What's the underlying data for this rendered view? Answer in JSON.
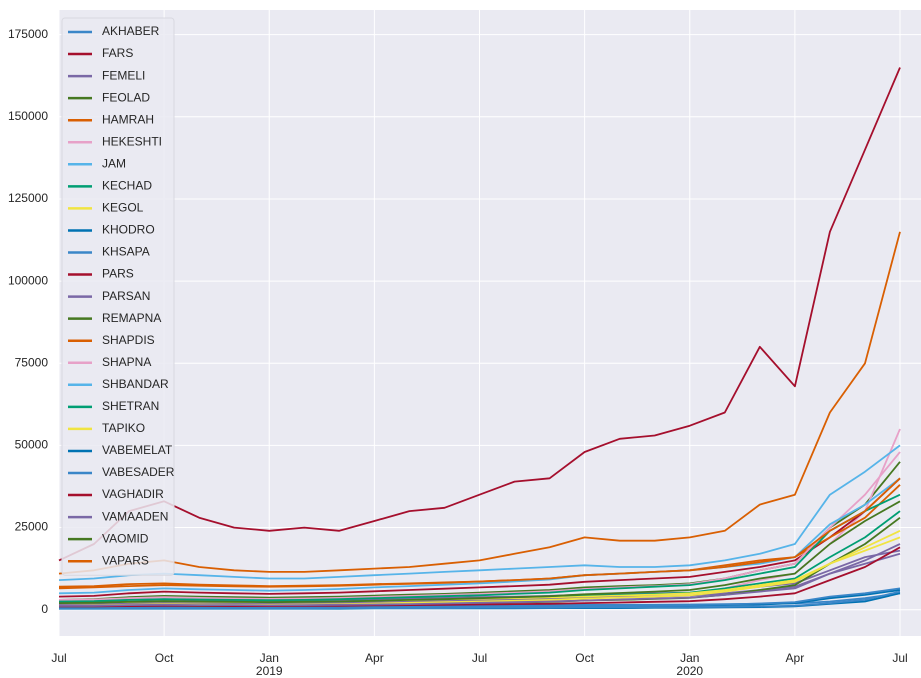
{
  "chart_data": {
    "type": "line",
    "x": [
      "2018-07",
      "2018-08",
      "2018-09",
      "2018-10",
      "2018-11",
      "2018-12",
      "2019-01",
      "2019-02",
      "2019-03",
      "2019-04",
      "2019-05",
      "2019-06",
      "2019-07",
      "2019-08",
      "2019-09",
      "2019-10",
      "2019-11",
      "2019-12",
      "2020-01",
      "2020-02",
      "2020-03",
      "2020-04",
      "2020-05",
      "2020-06",
      "2020-07"
    ],
    "xlim": [
      "2018-07",
      "2020-07"
    ],
    "xticks": [
      {
        "value": "2018-07",
        "label": "Jul"
      },
      {
        "value": "2018-10",
        "label": "Oct"
      },
      {
        "value": "2019-01",
        "label": "Jan",
        "year": "2019"
      },
      {
        "value": "2019-04",
        "label": "Apr"
      },
      {
        "value": "2019-07",
        "label": "Jul"
      },
      {
        "value": "2019-10",
        "label": "Oct"
      },
      {
        "value": "2020-01",
        "label": "Jan",
        "year": "2020"
      },
      {
        "value": "2020-04",
        "label": "Apr"
      },
      {
        "value": "2020-07",
        "label": "Jul"
      }
    ],
    "ylim": [
      -8000,
      182500
    ],
    "yticks": [
      0,
      25000,
      50000,
      75000,
      100000,
      125000,
      150000,
      175000
    ],
    "grid": true,
    "legend": "upper-left",
    "series": [
      {
        "name": "AKHABER",
        "color": "#3a86c8",
        "values": [
          1000,
          1000,
          1100,
          1100,
          1000,
          1000,
          1000,
          1100,
          1100,
          1200,
          1200,
          1300,
          1300,
          1400,
          1400,
          1500,
          1500,
          1500,
          1600,
          1700,
          1800,
          1900,
          2500,
          3500,
          5000
        ]
      },
      {
        "name": "FARS",
        "color": "#a50f2d",
        "values": [
          15000,
          20000,
          30000,
          33000,
          28000,
          25000,
          24000,
          25000,
          24000,
          27000,
          30000,
          31000,
          35000,
          39000,
          40000,
          48000,
          52000,
          53000,
          56000,
          60000,
          80000,
          68000,
          115000,
          140000,
          165000
        ]
      },
      {
        "name": "FEMELI",
        "color": "#7a68a6",
        "values": [
          2500,
          2600,
          3000,
          3200,
          3000,
          2900,
          2800,
          2900,
          3000,
          3200,
          3400,
          3600,
          3800,
          4000,
          4200,
          4600,
          4800,
          5000,
          5200,
          6000,
          7000,
          8000,
          12000,
          16000,
          18000
        ]
      },
      {
        "name": "FEOLAD",
        "color": "#467821",
        "values": [
          3000,
          3200,
          3800,
          4200,
          4000,
          3800,
          3700,
          3800,
          4000,
          4300,
          4600,
          4800,
          5200,
          5600,
          6000,
          6800,
          7200,
          7500,
          8000,
          9500,
          12000,
          14000,
          25000,
          32000,
          45000
        ]
      },
      {
        "name": "HAMRAH",
        "color": "#d95f02",
        "values": [
          11000,
          12000,
          14000,
          15000,
          13000,
          12000,
          11500,
          11500,
          12000,
          12500,
          13000,
          14000,
          15000,
          17000,
          19000,
          22000,
          21000,
          21000,
          22000,
          24000,
          32000,
          35000,
          60000,
          75000,
          115000
        ]
      },
      {
        "name": "HEKESHTI",
        "color": "#e7a1c8",
        "values": [
          1500,
          1600,
          1800,
          2000,
          1900,
          1800,
          1800,
          1900,
          2000,
          2200,
          2400,
          2600,
          2800,
          3000,
          3300,
          3800,
          4200,
          4500,
          5000,
          6500,
          9000,
          11000,
          20000,
          30000,
          55000
        ]
      },
      {
        "name": "JAM",
        "color": "#56b4e9",
        "values": [
          9000,
          9500,
          10500,
          11000,
          10500,
          10000,
          9500,
          9500,
          10000,
          10500,
          11000,
          11500,
          12000,
          12500,
          13000,
          13500,
          13000,
          13000,
          13500,
          15000,
          17000,
          20000,
          35000,
          42000,
          50000
        ]
      },
      {
        "name": "KECHAD",
        "color": "#009e73",
        "values": [
          2000,
          2100,
          2400,
          2600,
          2500,
          2400,
          2300,
          2400,
          2500,
          2700,
          2900,
          3100,
          3300,
          3500,
          3800,
          4200,
          4500,
          4800,
          5200,
          6500,
          8000,
          9500,
          16000,
          22000,
          30000
        ]
      },
      {
        "name": "KEGOL",
        "color": "#f0e442",
        "values": [
          1800,
          1900,
          2200,
          2400,
          2300,
          2200,
          2100,
          2200,
          2300,
          2500,
          2700,
          2900,
          3100,
          3300,
          3600,
          4000,
          4300,
          4600,
          5000,
          6000,
          7500,
          9000,
          14000,
          18000,
          22000
        ]
      },
      {
        "name": "KHODRO",
        "color": "#0072b2",
        "values": [
          500,
          500,
          600,
          600,
          600,
          600,
          600,
          600,
          700,
          700,
          700,
          800,
          800,
          900,
          900,
          1000,
          1000,
          1100,
          1200,
          1400,
          1600,
          2000,
          3500,
          4500,
          6000
        ]
      },
      {
        "name": "KHSAPA",
        "color": "#3a86c8",
        "values": [
          700,
          700,
          800,
          800,
          800,
          800,
          800,
          800,
          900,
          900,
          900,
          1000,
          1000,
          1100,
          1100,
          1200,
          1200,
          1300,
          1400,
          1600,
          1900,
          2300,
          4000,
          5000,
          6500
        ]
      },
      {
        "name": "PARS",
        "color": "#a50f2d",
        "values": [
          4000,
          4200,
          5000,
          5500,
          5200,
          5000,
          4800,
          5000,
          5200,
          5600,
          6000,
          6400,
          6800,
          7200,
          7600,
          8500,
          9000,
          9500,
          10000,
          11500,
          13000,
          15000,
          22000,
          30000,
          40000
        ]
      },
      {
        "name": "PARSAN",
        "color": "#7a68a6",
        "values": [
          1500,
          1600,
          1800,
          2000,
          1900,
          1800,
          1800,
          1900,
          2000,
          2200,
          2400,
          2600,
          2800,
          3000,
          3200,
          3500,
          3800,
          4000,
          4300,
          5000,
          6000,
          7000,
          11000,
          14000,
          17000
        ]
      },
      {
        "name": "REMAPNA",
        "color": "#467821",
        "values": [
          1000,
          1000,
          1200,
          1300,
          1200,
          1200,
          1200,
          1300,
          1400,
          1500,
          1600,
          1800,
          2000,
          2200,
          2400,
          2800,
          3000,
          3300,
          3600,
          4500,
          6000,
          7500,
          14000,
          20000,
          28000
        ]
      },
      {
        "name": "SHAPDIS",
        "color": "#d95f02",
        "values": [
          7000,
          7200,
          7800,
          8000,
          7600,
          7400,
          7200,
          7300,
          7500,
          7800,
          8000,
          8300,
          8600,
          9000,
          9500,
          10500,
          11000,
          11500,
          12000,
          13500,
          15000,
          16000,
          22000,
          28000,
          38000
        ]
      },
      {
        "name": "SHAPNA",
        "color": "#e7a1c8",
        "values": [
          3000,
          3100,
          3500,
          3800,
          3600,
          3400,
          3300,
          3400,
          3600,
          3900,
          4200,
          4500,
          4800,
          5200,
          5600,
          6300,
          6800,
          7200,
          7800,
          9500,
          12000,
          14000,
          25000,
          35000,
          48000
        ]
      },
      {
        "name": "SHBANDAR",
        "color": "#56b4e9",
        "values": [
          5000,
          5200,
          6000,
          6500,
          6200,
          6000,
          5800,
          6000,
          6300,
          6800,
          7200,
          7600,
          8000,
          8600,
          9200,
          10500,
          11000,
          11500,
          12000,
          13000,
          14000,
          16000,
          26000,
          32000,
          40000
        ]
      },
      {
        "name": "SHETRAN",
        "color": "#009e73",
        "values": [
          2500,
          2600,
          3000,
          3200,
          3100,
          3000,
          2900,
          3000,
          3200,
          3500,
          3800,
          4100,
          4400,
          4800,
          5200,
          6000,
          6500,
          7000,
          7500,
          9000,
          11000,
          13000,
          24000,
          30000,
          35000
        ]
      },
      {
        "name": "TAPIKO",
        "color": "#f0e442",
        "values": [
          1200,
          1300,
          1500,
          1700,
          1600,
          1500,
          1500,
          1600,
          1700,
          1900,
          2100,
          2300,
          2500,
          2700,
          3000,
          3400,
          3700,
          4000,
          4400,
          5500,
          7000,
          8500,
          14000,
          19000,
          24000
        ]
      },
      {
        "name": "VABEMELAT",
        "color": "#0072b2",
        "values": [
          300,
          300,
          300,
          300,
          300,
          300,
          300,
          300,
          300,
          400,
          400,
          400,
          400,
          400,
          500,
          500,
          500,
          600,
          600,
          700,
          800,
          1000,
          1800,
          2500,
          5000
        ]
      },
      {
        "name": "VABESADER",
        "color": "#3a86c8",
        "values": [
          400,
          400,
          400,
          400,
          400,
          400,
          400,
          400,
          500,
          500,
          500,
          500,
          600,
          600,
          600,
          700,
          700,
          800,
          800,
          900,
          1000,
          1200,
          2000,
          3000,
          5500
        ]
      },
      {
        "name": "VAGHADIR",
        "color": "#a50f2d",
        "values": [
          1000,
          1000,
          1100,
          1200,
          1200,
          1100,
          1100,
          1200,
          1200,
          1300,
          1400,
          1500,
          1600,
          1700,
          1800,
          2000,
          2200,
          2400,
          2600,
          3200,
          4000,
          5000,
          9000,
          13000,
          19000
        ]
      },
      {
        "name": "VAMAADEN",
        "color": "#7a68a6",
        "values": [
          1200,
          1200,
          1400,
          1500,
          1400,
          1400,
          1300,
          1400,
          1500,
          1600,
          1700,
          1900,
          2100,
          2300,
          2500,
          2800,
          3100,
          3400,
          3700,
          4500,
          5500,
          6500,
          11000,
          15000,
          20000
        ]
      },
      {
        "name": "VAOMID",
        "color": "#467821",
        "values": [
          2000,
          2100,
          2400,
          2600,
          2500,
          2400,
          2300,
          2400,
          2500,
          2700,
          3000,
          3200,
          3500,
          3800,
          4100,
          4700,
          5100,
          5500,
          6000,
          7500,
          9500,
          11000,
          20000,
          27000,
          33000
        ]
      },
      {
        "name": "VAPARS",
        "color": "#d95f02",
        "values": [
          6500,
          6800,
          7200,
          7500,
          7300,
          7100,
          7000,
          7100,
          7300,
          7600,
          7900,
          8200,
          8600,
          9000,
          9500,
          10500,
          11000,
          11500,
          12000,
          13000,
          14500,
          16000,
          24000,
          30000,
          40000
        ]
      }
    ]
  }
}
